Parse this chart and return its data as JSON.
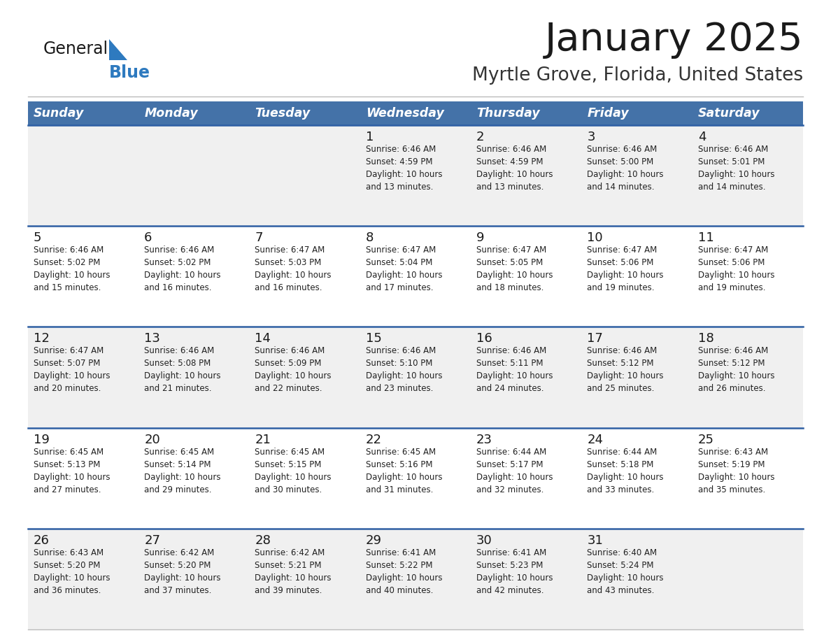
{
  "title": "January 2025",
  "subtitle": "Myrtle Grove, Florida, United States",
  "header_bg": "#4472a8",
  "header_text_color": "#ffffff",
  "row_bg_odd": "#f0f0f0",
  "row_bg_even": "#ffffff",
  "separator_color": "#2e5fa3",
  "day_headers": [
    "Sunday",
    "Monday",
    "Tuesday",
    "Wednesday",
    "Thursday",
    "Friday",
    "Saturday"
  ],
  "calendar": [
    [
      {
        "day": "",
        "info": ""
      },
      {
        "day": "",
        "info": ""
      },
      {
        "day": "",
        "info": ""
      },
      {
        "day": "1",
        "info": "Sunrise: 6:46 AM\nSunset: 4:59 PM\nDaylight: 10 hours\nand 13 minutes."
      },
      {
        "day": "2",
        "info": "Sunrise: 6:46 AM\nSunset: 4:59 PM\nDaylight: 10 hours\nand 13 minutes."
      },
      {
        "day": "3",
        "info": "Sunrise: 6:46 AM\nSunset: 5:00 PM\nDaylight: 10 hours\nand 14 minutes."
      },
      {
        "day": "4",
        "info": "Sunrise: 6:46 AM\nSunset: 5:01 PM\nDaylight: 10 hours\nand 14 minutes."
      }
    ],
    [
      {
        "day": "5",
        "info": "Sunrise: 6:46 AM\nSunset: 5:02 PM\nDaylight: 10 hours\nand 15 minutes."
      },
      {
        "day": "6",
        "info": "Sunrise: 6:46 AM\nSunset: 5:02 PM\nDaylight: 10 hours\nand 16 minutes."
      },
      {
        "day": "7",
        "info": "Sunrise: 6:47 AM\nSunset: 5:03 PM\nDaylight: 10 hours\nand 16 minutes."
      },
      {
        "day": "8",
        "info": "Sunrise: 6:47 AM\nSunset: 5:04 PM\nDaylight: 10 hours\nand 17 minutes."
      },
      {
        "day": "9",
        "info": "Sunrise: 6:47 AM\nSunset: 5:05 PM\nDaylight: 10 hours\nand 18 minutes."
      },
      {
        "day": "10",
        "info": "Sunrise: 6:47 AM\nSunset: 5:06 PM\nDaylight: 10 hours\nand 19 minutes."
      },
      {
        "day": "11",
        "info": "Sunrise: 6:47 AM\nSunset: 5:06 PM\nDaylight: 10 hours\nand 19 minutes."
      }
    ],
    [
      {
        "day": "12",
        "info": "Sunrise: 6:47 AM\nSunset: 5:07 PM\nDaylight: 10 hours\nand 20 minutes."
      },
      {
        "day": "13",
        "info": "Sunrise: 6:46 AM\nSunset: 5:08 PM\nDaylight: 10 hours\nand 21 minutes."
      },
      {
        "day": "14",
        "info": "Sunrise: 6:46 AM\nSunset: 5:09 PM\nDaylight: 10 hours\nand 22 minutes."
      },
      {
        "day": "15",
        "info": "Sunrise: 6:46 AM\nSunset: 5:10 PM\nDaylight: 10 hours\nand 23 minutes."
      },
      {
        "day": "16",
        "info": "Sunrise: 6:46 AM\nSunset: 5:11 PM\nDaylight: 10 hours\nand 24 minutes."
      },
      {
        "day": "17",
        "info": "Sunrise: 6:46 AM\nSunset: 5:12 PM\nDaylight: 10 hours\nand 25 minutes."
      },
      {
        "day": "18",
        "info": "Sunrise: 6:46 AM\nSunset: 5:12 PM\nDaylight: 10 hours\nand 26 minutes."
      }
    ],
    [
      {
        "day": "19",
        "info": "Sunrise: 6:45 AM\nSunset: 5:13 PM\nDaylight: 10 hours\nand 27 minutes."
      },
      {
        "day": "20",
        "info": "Sunrise: 6:45 AM\nSunset: 5:14 PM\nDaylight: 10 hours\nand 29 minutes."
      },
      {
        "day": "21",
        "info": "Sunrise: 6:45 AM\nSunset: 5:15 PM\nDaylight: 10 hours\nand 30 minutes."
      },
      {
        "day": "22",
        "info": "Sunrise: 6:45 AM\nSunset: 5:16 PM\nDaylight: 10 hours\nand 31 minutes."
      },
      {
        "day": "23",
        "info": "Sunrise: 6:44 AM\nSunset: 5:17 PM\nDaylight: 10 hours\nand 32 minutes."
      },
      {
        "day": "24",
        "info": "Sunrise: 6:44 AM\nSunset: 5:18 PM\nDaylight: 10 hours\nand 33 minutes."
      },
      {
        "day": "25",
        "info": "Sunrise: 6:43 AM\nSunset: 5:19 PM\nDaylight: 10 hours\nand 35 minutes."
      }
    ],
    [
      {
        "day": "26",
        "info": "Sunrise: 6:43 AM\nSunset: 5:20 PM\nDaylight: 10 hours\nand 36 minutes."
      },
      {
        "day": "27",
        "info": "Sunrise: 6:42 AM\nSunset: 5:20 PM\nDaylight: 10 hours\nand 37 minutes."
      },
      {
        "day": "28",
        "info": "Sunrise: 6:42 AM\nSunset: 5:21 PM\nDaylight: 10 hours\nand 39 minutes."
      },
      {
        "day": "29",
        "info": "Sunrise: 6:41 AM\nSunset: 5:22 PM\nDaylight: 10 hours\nand 40 minutes."
      },
      {
        "day": "30",
        "info": "Sunrise: 6:41 AM\nSunset: 5:23 PM\nDaylight: 10 hours\nand 42 minutes."
      },
      {
        "day": "31",
        "info": "Sunrise: 6:40 AM\nSunset: 5:24 PM\nDaylight: 10 hours\nand 43 minutes."
      },
      {
        "day": "",
        "info": ""
      }
    ]
  ]
}
